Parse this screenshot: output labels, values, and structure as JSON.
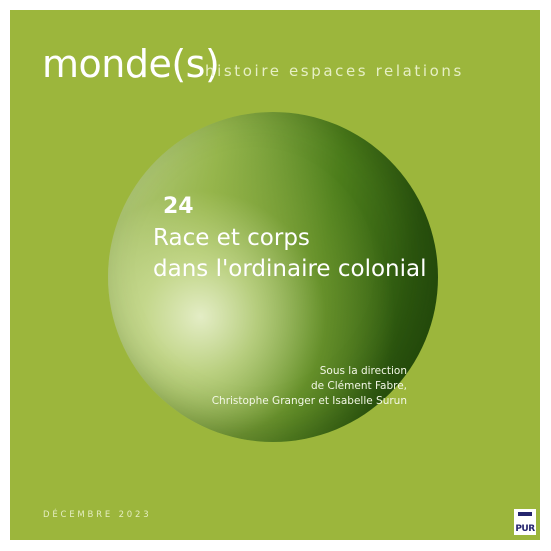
{
  "cover": {
    "journal_title": "monde(s)",
    "journal_subtitle": "histoire espaces relations",
    "issue_number": "24",
    "issue_title_line1": "Race et corps",
    "issue_title_line2": "dans l'ordinaire colonial",
    "editors_line1": "Sous la direction",
    "editors_line2": "de Clément Fabre,",
    "editors_line3": "Christophe Granger et Isabelle Surun",
    "date": "DÉCEMBRE 2023",
    "publisher_logo_text": "PUR",
    "colors": {
      "background": "#9cb63c",
      "sphere_dark": "#2f5a10",
      "sphere_light": "#e8f0cc",
      "text": "#ffffff"
    }
  }
}
